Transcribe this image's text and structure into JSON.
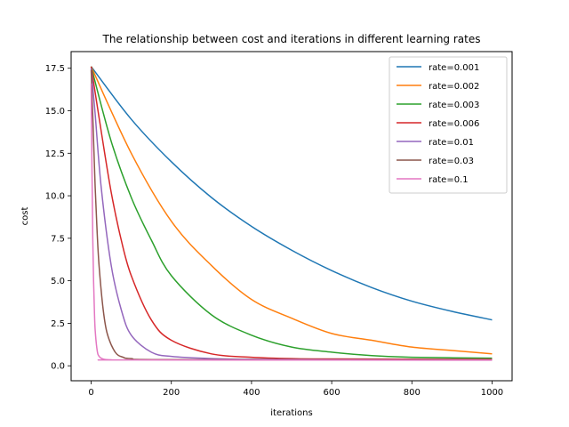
{
  "chart_data": {
    "type": "line",
    "title": "The relationship between cost and iterations in different learning rates",
    "xlabel": "iterations",
    "ylabel": "cost",
    "xlim": [
      -50,
      1050
    ],
    "ylim": [
      -0.88,
      18.48
    ],
    "x_ticks": [
      "0",
      "200",
      "400",
      "600",
      "800",
      "1000"
    ],
    "y_ticks": [
      "0.0",
      "2.5",
      "5.0",
      "7.5",
      "10.0",
      "12.5",
      "15.0",
      "17.5"
    ],
    "grid": false,
    "legend_position": "top-right",
    "series": [
      {
        "name": "rate=0.001",
        "color": "#1f77b4",
        "x": [
          0,
          100,
          200,
          300,
          400,
          500,
          600,
          700,
          800,
          900,
          1000
        ],
        "y": [
          17.6,
          14.5,
          12.0,
          9.9,
          8.2,
          6.8,
          5.6,
          4.6,
          3.8,
          3.2,
          2.7
        ]
      },
      {
        "name": "rate=0.002",
        "color": "#ff7f0e",
        "x": [
          0,
          100,
          200,
          300,
          400,
          500,
          600,
          700,
          800,
          900,
          1000
        ],
        "y": [
          17.6,
          12.5,
          8.5,
          5.9,
          3.9,
          2.8,
          1.9,
          1.5,
          1.1,
          0.9,
          0.7
        ]
      },
      {
        "name": "rate=0.003",
        "color": "#2ca02c",
        "x": [
          0,
          50,
          100,
          150,
          200,
          300,
          400,
          500,
          600,
          700,
          800,
          1000
        ],
        "y": [
          17.6,
          13.2,
          9.9,
          7.4,
          5.3,
          3.0,
          1.8,
          1.1,
          0.8,
          0.6,
          0.5,
          0.45
        ]
      },
      {
        "name": "rate=0.006",
        "color": "#d62728",
        "x": [
          0,
          25,
          50,
          75,
          100,
          150,
          200,
          300,
          400,
          500,
          600,
          1000
        ],
        "y": [
          17.6,
          13.8,
          10.2,
          7.4,
          5.3,
          2.7,
          1.5,
          0.7,
          0.5,
          0.42,
          0.4,
          0.38
        ]
      },
      {
        "name": "rate=0.01",
        "color": "#9467bd",
        "x": [
          0,
          10,
          25,
          50,
          75,
          100,
          150,
          200,
          300,
          400,
          600,
          1000
        ],
        "y": [
          17.5,
          14.8,
          10.5,
          5.9,
          3.3,
          1.8,
          0.8,
          0.55,
          0.42,
          0.38,
          0.36,
          0.35
        ]
      },
      {
        "name": "rate=0.03",
        "color": "#8c564b",
        "x": [
          0,
          5,
          10,
          15,
          20,
          30,
          40,
          60,
          80,
          100,
          200,
          1000
        ],
        "y": [
          17.4,
          14.0,
          10.5,
          7.8,
          5.8,
          3.3,
          1.9,
          0.8,
          0.5,
          0.42,
          0.36,
          0.35
        ]
      },
      {
        "name": "rate=0.1",
        "color": "#e377c2",
        "x": [
          0,
          2,
          4,
          6,
          8,
          10,
          15,
          20,
          30,
          50,
          100,
          1000
        ],
        "y": [
          16.6,
          11.5,
          7.5,
          5.0,
          3.3,
          2.1,
          0.9,
          0.55,
          0.4,
          0.35,
          0.34,
          0.33
        ]
      }
    ]
  }
}
